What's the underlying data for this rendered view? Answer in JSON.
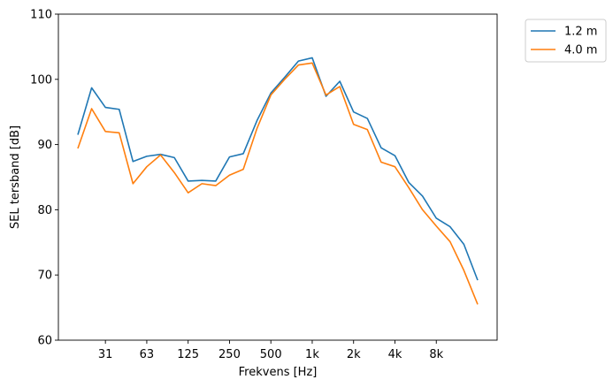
{
  "chart_data": {
    "type": "line",
    "xlabel": "Frekvens [Hz]",
    "ylabel": "SEL tersband [dB]",
    "ylim": [
      60,
      110
    ],
    "yticks": [
      60,
      70,
      80,
      90,
      100,
      110
    ],
    "xticks": [
      {
        "index": 2,
        "label": "31"
      },
      {
        "index": 5,
        "label": "63"
      },
      {
        "index": 8,
        "label": "125"
      },
      {
        "index": 11,
        "label": "250"
      },
      {
        "index": 14,
        "label": "500"
      },
      {
        "index": 17,
        "label": "1k"
      },
      {
        "index": 20,
        "label": "2k"
      },
      {
        "index": 23,
        "label": "4k"
      },
      {
        "index": 26,
        "label": "8k"
      }
    ],
    "legend_position": "outside-top-right",
    "grid": false,
    "series": [
      {
        "name": "1.2 m",
        "color": "#1f77b4",
        "values": [
          91.5,
          98.7,
          95.7,
          95.4,
          87.4,
          88.2,
          88.5,
          88.0,
          84.4,
          84.5,
          84.4,
          88.1,
          88.6,
          93.7,
          97.9,
          100.3,
          102.8,
          103.3,
          97.4,
          99.7,
          95.0,
          94.0,
          89.5,
          88.3,
          84.2,
          82.1,
          78.7,
          77.4,
          74.7,
          69.2
        ]
      },
      {
        "name": "4.0 m",
        "color": "#ff7f0e",
        "values": [
          89.4,
          95.5,
          92.0,
          91.8,
          84.0,
          86.6,
          88.4,
          85.7,
          82.6,
          84.0,
          83.7,
          85.3,
          86.2,
          92.5,
          97.6,
          100.0,
          102.2,
          102.5,
          97.6,
          98.9,
          93.1,
          92.3,
          87.3,
          86.6,
          83.4,
          80.0,
          77.5,
          75.1,
          70.7,
          65.5
        ]
      }
    ]
  }
}
